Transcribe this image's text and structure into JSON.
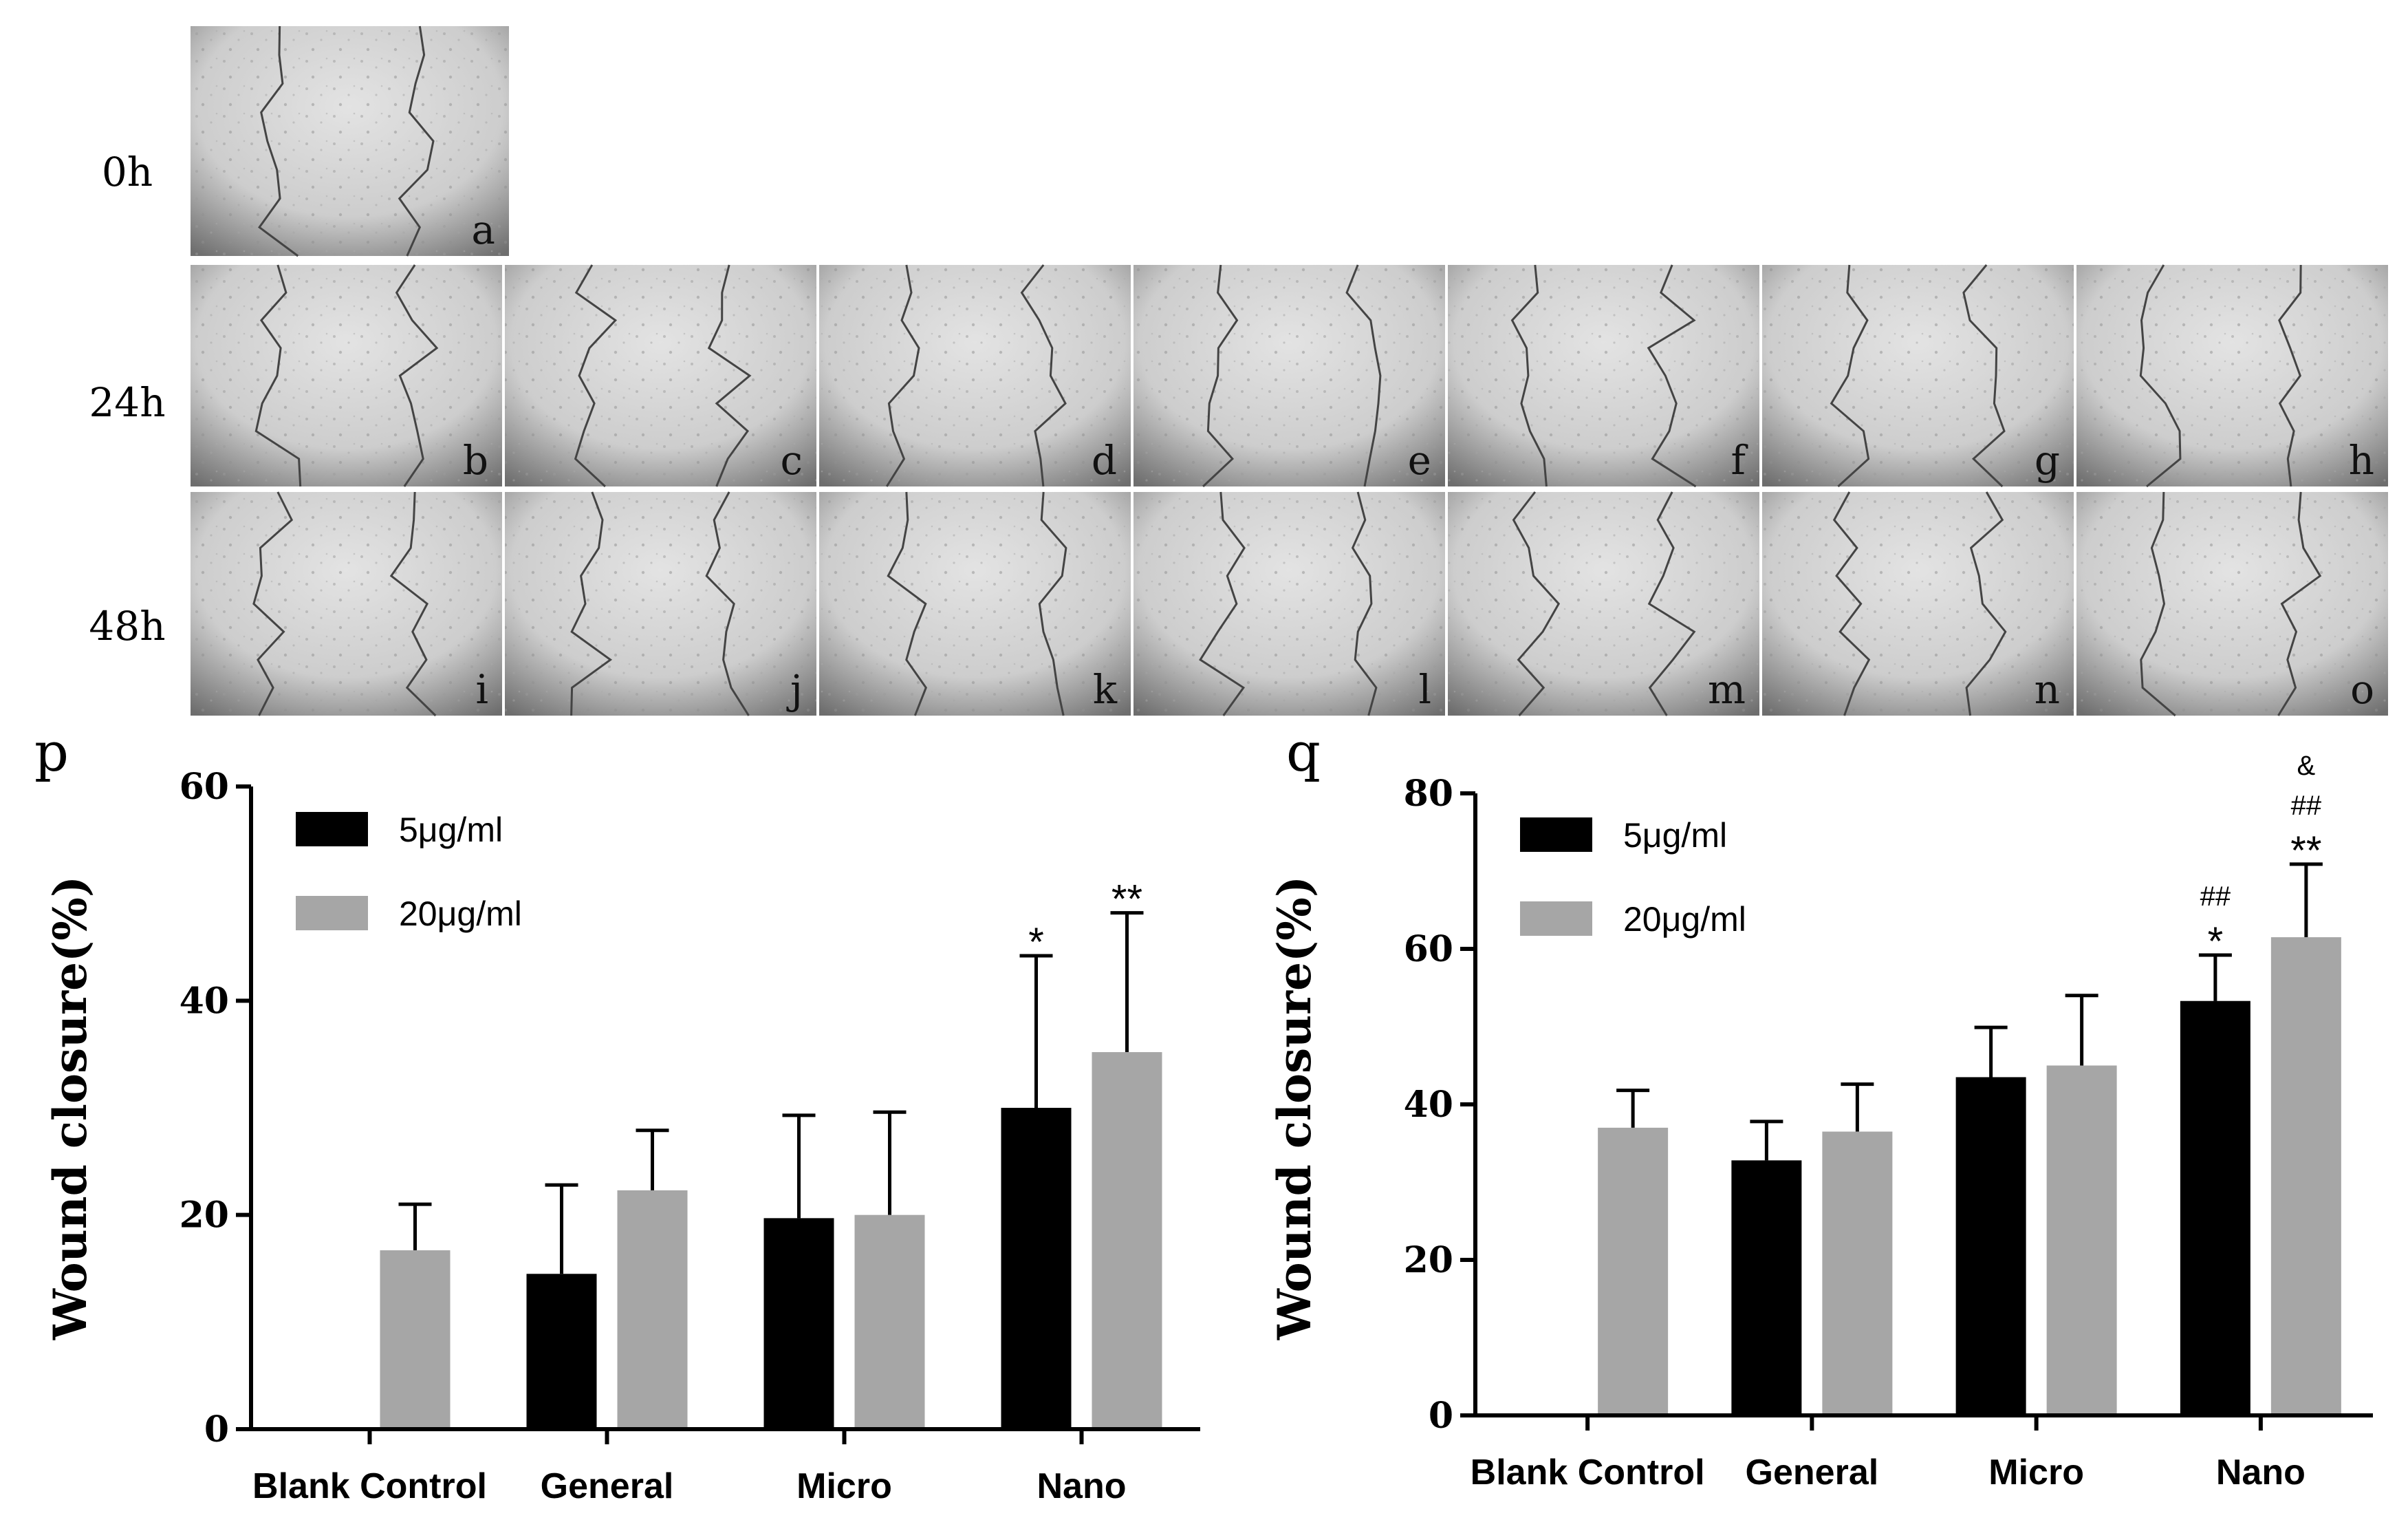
{
  "micrographs": {
    "row_labels": [
      "0h",
      "24h",
      "48h"
    ],
    "rows": [
      [
        "a"
      ],
      [
        "b",
        "c",
        "d",
        "e",
        "f",
        "g",
        "h"
      ],
      [
        "i",
        "j",
        "k",
        "l",
        "m",
        "n",
        "o"
      ]
    ]
  },
  "chart_data": [
    {
      "type": "bar",
      "panel_label": "p",
      "ylabel": "Wound closure(%)",
      "ylim": [
        0,
        60
      ],
      "yticks": [
        0,
        20,
        40,
        60
      ],
      "categories": [
        "Blank Control",
        "General",
        "Micro",
        "Nano"
      ],
      "legend_position": "top-left",
      "series": [
        {
          "name": "5μg/ml",
          "color": "#000000",
          "values": [
            null,
            14.5,
            19.7,
            30.0
          ],
          "errors": [
            null,
            8.3,
            9.6,
            14.2
          ]
        },
        {
          "name": "20μg/ml",
          "color": "#a6a6a6",
          "values": [
            16.7,
            22.3,
            20.0,
            35.2
          ],
          "errors": [
            4.3,
            5.6,
            9.6,
            13.0
          ]
        }
      ],
      "annotations": [
        {
          "category": "Nano",
          "series": "5μg/ml",
          "lines": [
            "*"
          ]
        },
        {
          "category": "Nano",
          "series": "20μg/ml",
          "lines": [
            "**"
          ]
        }
      ]
    },
    {
      "type": "bar",
      "panel_label": "q",
      "ylabel": "Wound closure(%)",
      "ylim": [
        0,
        80
      ],
      "yticks": [
        0,
        20,
        40,
        60,
        80
      ],
      "categories": [
        "Blank Control",
        "General",
        "Micro",
        "Nano"
      ],
      "legend_position": "top-left",
      "series": [
        {
          "name": "5μg/ml",
          "color": "#000000",
          "values": [
            null,
            32.8,
            43.5,
            53.3
          ],
          "errors": [
            null,
            5.0,
            6.4,
            5.9
          ]
        },
        {
          "name": "20μg/ml",
          "color": "#a6a6a6",
          "values": [
            37.0,
            36.5,
            45.0,
            61.5
          ],
          "errors": [
            4.8,
            6.1,
            9.0,
            9.4
          ]
        }
      ],
      "annotations": [
        {
          "category": "Nano",
          "series": "5μg/ml",
          "lines": [
            "##",
            "*"
          ]
        },
        {
          "category": "Nano",
          "series": "20μg/ml",
          "lines": [
            "&",
            "##",
            "**"
          ]
        }
      ]
    }
  ]
}
